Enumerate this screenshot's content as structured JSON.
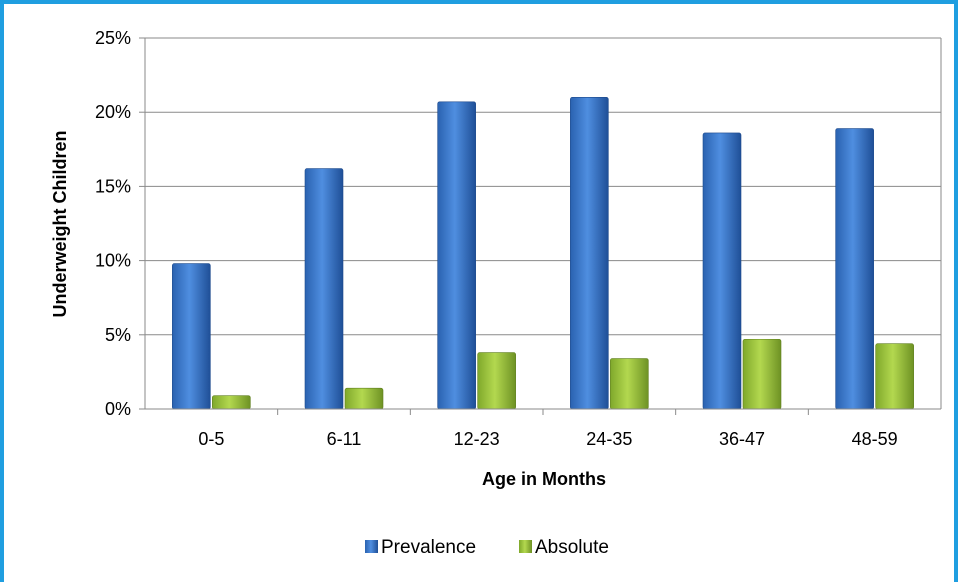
{
  "chart_data": {
    "type": "bar",
    "title": "",
    "xlabel": "Age in Months",
    "ylabel": "Underweight Children",
    "categories": [
      "0-5",
      "6-11",
      "12-23",
      "24-35",
      "36-47",
      "48-59"
    ],
    "series": [
      {
        "name": "Prevalence",
        "values": [
          0.098,
          0.162,
          0.207,
          0.21,
          0.186,
          0.189
        ]
      },
      {
        "name": "Absolute",
        "values": [
          0.009,
          0.014,
          0.038,
          0.034,
          0.047,
          0.044
        ]
      }
    ],
    "ylim": [
      0,
      0.25
    ],
    "yticks": [
      {
        "value": 0,
        "label": "0%"
      },
      {
        "value": 0.05,
        "label": "5%"
      },
      {
        "value": 0.1,
        "label": "10%"
      },
      {
        "value": 0.15,
        "label": "15%"
      },
      {
        "value": 0.2,
        "label": "20%"
      },
      {
        "value": 0.25,
        "label": "25%"
      }
    ],
    "grid": true,
    "legend_position": "bottom",
    "colors": {
      "Prevalence": "#3a78c9",
      "Absolute": "#9bc43a",
      "frame_border": "#1f9ee0",
      "gridline": "#8a8a8a"
    }
  }
}
